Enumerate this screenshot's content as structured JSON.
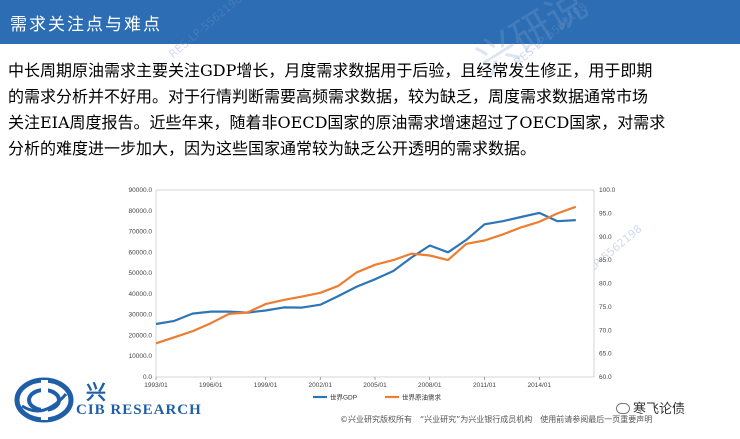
{
  "header": {
    "title": "需求关注点与难点"
  },
  "watermark": {
    "stamp": "RES-LP-5562198",
    "logo_text": "兴研说"
  },
  "body": {
    "lines": [
      "中长周期原油需求主要关注GDP增长，月度需求数据用于后验，且经常发生修正，用于即期",
      "的需求分析并不好用。对于行情判断需要高频需求数据，较为缺乏，周度需求数据通常市场",
      "关注EIA周度报告。近些年来，随着非OECD国家的原油需求增速超过了OECD国家，对需求",
      "分析的难度进一步加大，因为这些国家通常较为缺乏公开透明的需求数据。"
    ]
  },
  "footer": {
    "logo_cn": "兴",
    "logo_en": "CIB RESEARCH",
    "note": "©兴业研究版权所有　“兴业研究”为兴业银行成员机构　使用前请参阅最后一页重要声明",
    "wechat": "寒飞论债"
  },
  "chart_data": {
    "type": "line",
    "x_ticks": [
      "1993/01",
      "1996/01",
      "1999/01",
      "2002/01",
      "2005/01",
      "2008/01",
      "2011/01",
      "2014/01"
    ],
    "y_left_ticks": [
      "0.0",
      "10000.0",
      "20000.0",
      "30000.0",
      "40000.0",
      "50000.0",
      "60000.0",
      "70000.0",
      "80000.0",
      "90000.0"
    ],
    "y_right_ticks": [
      "60.0",
      "65.0",
      "70.0",
      "75.0",
      "80.0",
      "85.0",
      "90.0",
      "95.0",
      "100.0"
    ],
    "ylim_left": [
      0,
      90000
    ],
    "ylim_right": [
      60,
      100
    ],
    "xlim": [
      1993,
      2017
    ],
    "series": [
      {
        "name": "世界GDP",
        "axis": "left",
        "color": "#2e75b6",
        "x": [
          1993,
          1994,
          1995,
          1996,
          1997,
          1998,
          1999,
          2000,
          2001,
          2002,
          2003,
          2004,
          2005,
          2006,
          2007,
          2008,
          2009,
          2010,
          2011,
          2012,
          2013,
          2014,
          2015,
          2016
        ],
        "y": [
          25500,
          27000,
          30500,
          31500,
          31500,
          31000,
          32000,
          33500,
          33400,
          34800,
          39000,
          43500,
          47000,
          51000,
          57500,
          63300,
          60000,
          66000,
          73500,
          75000,
          77000,
          79000,
          75000,
          75500
        ]
      },
      {
        "name": "世界原油需求",
        "axis": "right",
        "color": "#ed7d31",
        "x": [
          1993,
          1994,
          1995,
          1996,
          1997,
          1998,
          1999,
          2000,
          2001,
          2002,
          2003,
          2004,
          2005,
          2006,
          2007,
          2008,
          2009,
          2010,
          2011,
          2012,
          2013,
          2014,
          2015,
          2016
        ],
        "y": [
          67.2,
          68.5,
          69.8,
          71.5,
          73.5,
          73.8,
          75.6,
          76.5,
          77.2,
          78.0,
          79.5,
          82.4,
          84.0,
          85.0,
          86.4,
          86.0,
          85.0,
          88.5,
          89.2,
          90.5,
          92.0,
          93.2,
          95.0,
          96.4
        ]
      }
    ]
  }
}
